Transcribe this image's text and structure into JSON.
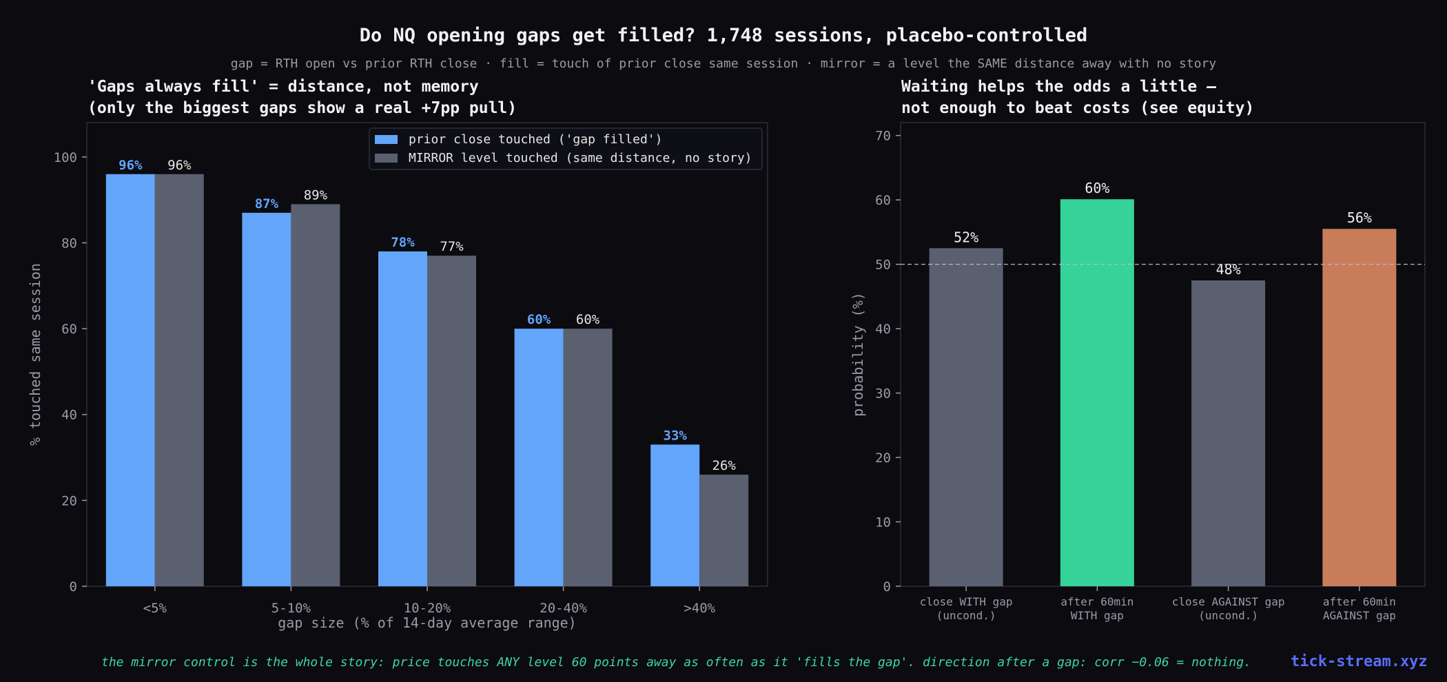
{
  "title": "Do NQ opening gaps get filled? 1,748 sessions, placebo-controlled",
  "subtitle": "gap = RTH open vs prior RTH close · fill = touch of prior close same session · mirror = a level the SAME distance away with no story",
  "footer_note": "the mirror control is the whole story: price touches ANY level 60 points away as often as it 'fills the gap'. direction after a gap: corr −0.06 = nothing.",
  "brand": "tick-stream.xyz",
  "colors": {
    "background": "#0b0b10",
    "filled": "#63a5fa",
    "mirror": "#5b6070",
    "unconditional": "#5b6070",
    "with_gap": "#35d399",
    "against_gap": "#c97c5a"
  },
  "chart_data": [
    {
      "type": "bar",
      "title_lines": [
        "'Gaps always fill' = distance, not memory",
        "(only the biggest gaps show a real +7pp pull)"
      ],
      "xlabel": "gap size (% of 14-day average range)",
      "ylabel": "% touched same session",
      "ylim": [
        0,
        108
      ],
      "yticks": [
        "0",
        "20",
        "40",
        "60",
        "80",
        "100"
      ],
      "grid": false,
      "legend_position": "top-right",
      "categories": [
        "<5%",
        "5-10%",
        "10-20%",
        "20-40%",
        ">40%"
      ],
      "series": [
        {
          "name": "prior close touched ('gap filled')",
          "values": [
            96,
            87,
            78,
            60,
            33
          ],
          "labels": [
            "96%",
            "87%",
            "78%",
            "60%",
            "33%"
          ]
        },
        {
          "name": "MIRROR level touched (same distance, no story)",
          "values": [
            96,
            89,
            77,
            60,
            26
          ],
          "labels": [
            "96%",
            "89%",
            "77%",
            "60%",
            "26%"
          ]
        }
      ]
    },
    {
      "type": "bar",
      "title_lines": [
        "Waiting helps the odds a little —",
        "not enough to beat costs (see equity)"
      ],
      "xlabel": "",
      "ylabel": "probability (%)",
      "ylim": [
        0,
        72
      ],
      "yticks": [
        "0",
        "10",
        "20",
        "30",
        "40",
        "50",
        "60",
        "70"
      ],
      "reference_line": 50,
      "grid": false,
      "categories": [
        [
          "close WITH gap",
          "(uncond.)"
        ],
        [
          "after 60min",
          "WITH gap"
        ],
        [
          "close AGAINST gap",
          "(uncond.)"
        ],
        [
          "after 60min",
          "AGAINST gap"
        ]
      ],
      "values": [
        52.5,
        60.1,
        47.5,
        55.5
      ],
      "labels": [
        "52%",
        "60%",
        "48%",
        "56%"
      ],
      "bar_colors": [
        "#5b6070",
        "#35d399",
        "#5b6070",
        "#c97c5a"
      ]
    }
  ]
}
